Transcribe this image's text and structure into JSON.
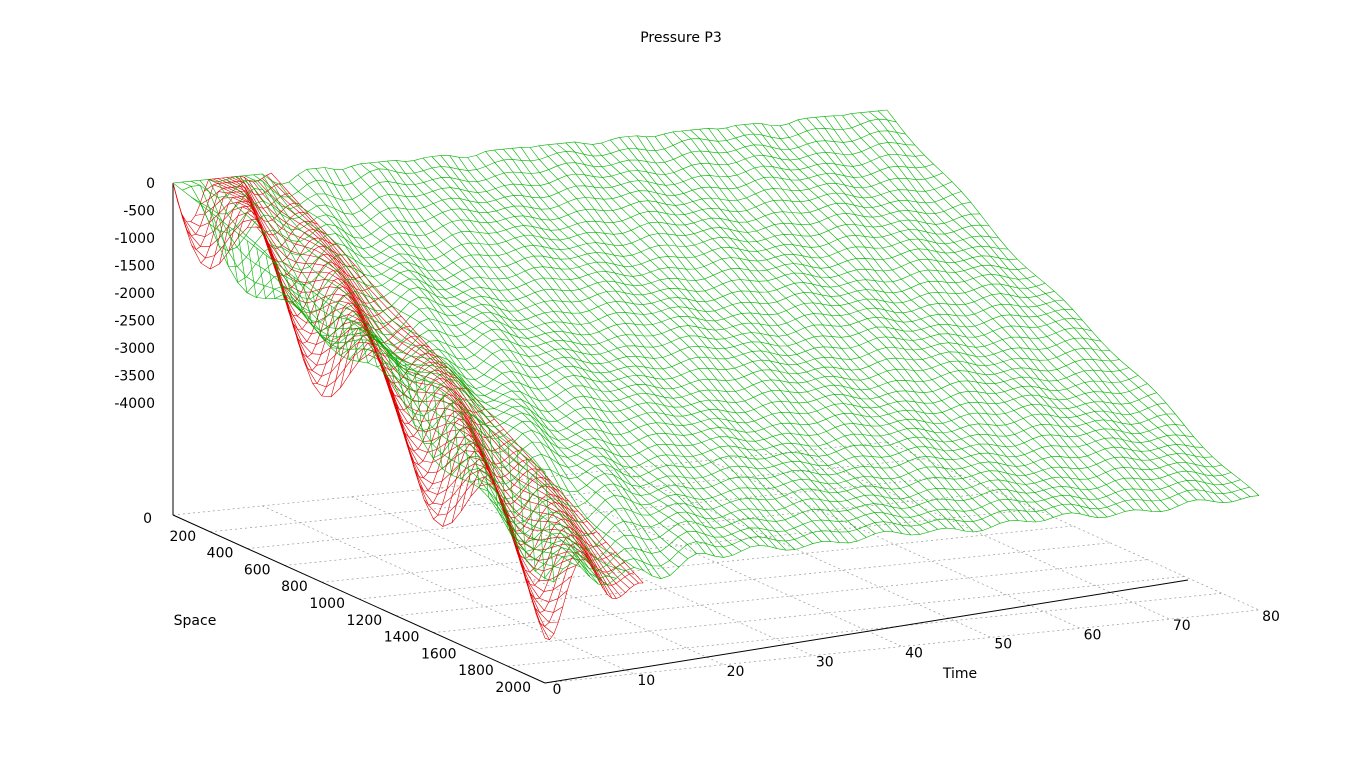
{
  "chart_data": {
    "type": "surface",
    "title": "Pressure P3",
    "xlabel": "Time",
    "ylabel": "Space",
    "zlabel": "",
    "x_range": [
      0,
      80
    ],
    "y_range": [
      0,
      2000
    ],
    "z_range": [
      -4000,
      0
    ],
    "x_ticks": [
      "0",
      "10",
      "20",
      "30",
      "40",
      "50",
      "60",
      "70",
      "80"
    ],
    "y_ticks": [
      "200",
      "400",
      "600",
      "800",
      "1000",
      "1200",
      "1400",
      "1600",
      "1800",
      "2000"
    ],
    "z_ticks": [
      "0",
      "-500",
      "-1000",
      "-1500",
      "-2000",
      "-2500",
      "-3000",
      "-3500",
      "-4000"
    ],
    "base_label": "0",
    "grid": true,
    "surface_style": "wireframe",
    "colors": {
      "top_surface": "#00b000",
      "under_surface": "#e00000",
      "axis": "#000000",
      "grid": "#999999"
    },
    "description_of_surface": {
      "time_range": [
        0,
        80
      ],
      "space_range": [
        0,
        2000
      ],
      "approx_min_pressure": -4000,
      "approx_max_pressure": 0
    }
  }
}
